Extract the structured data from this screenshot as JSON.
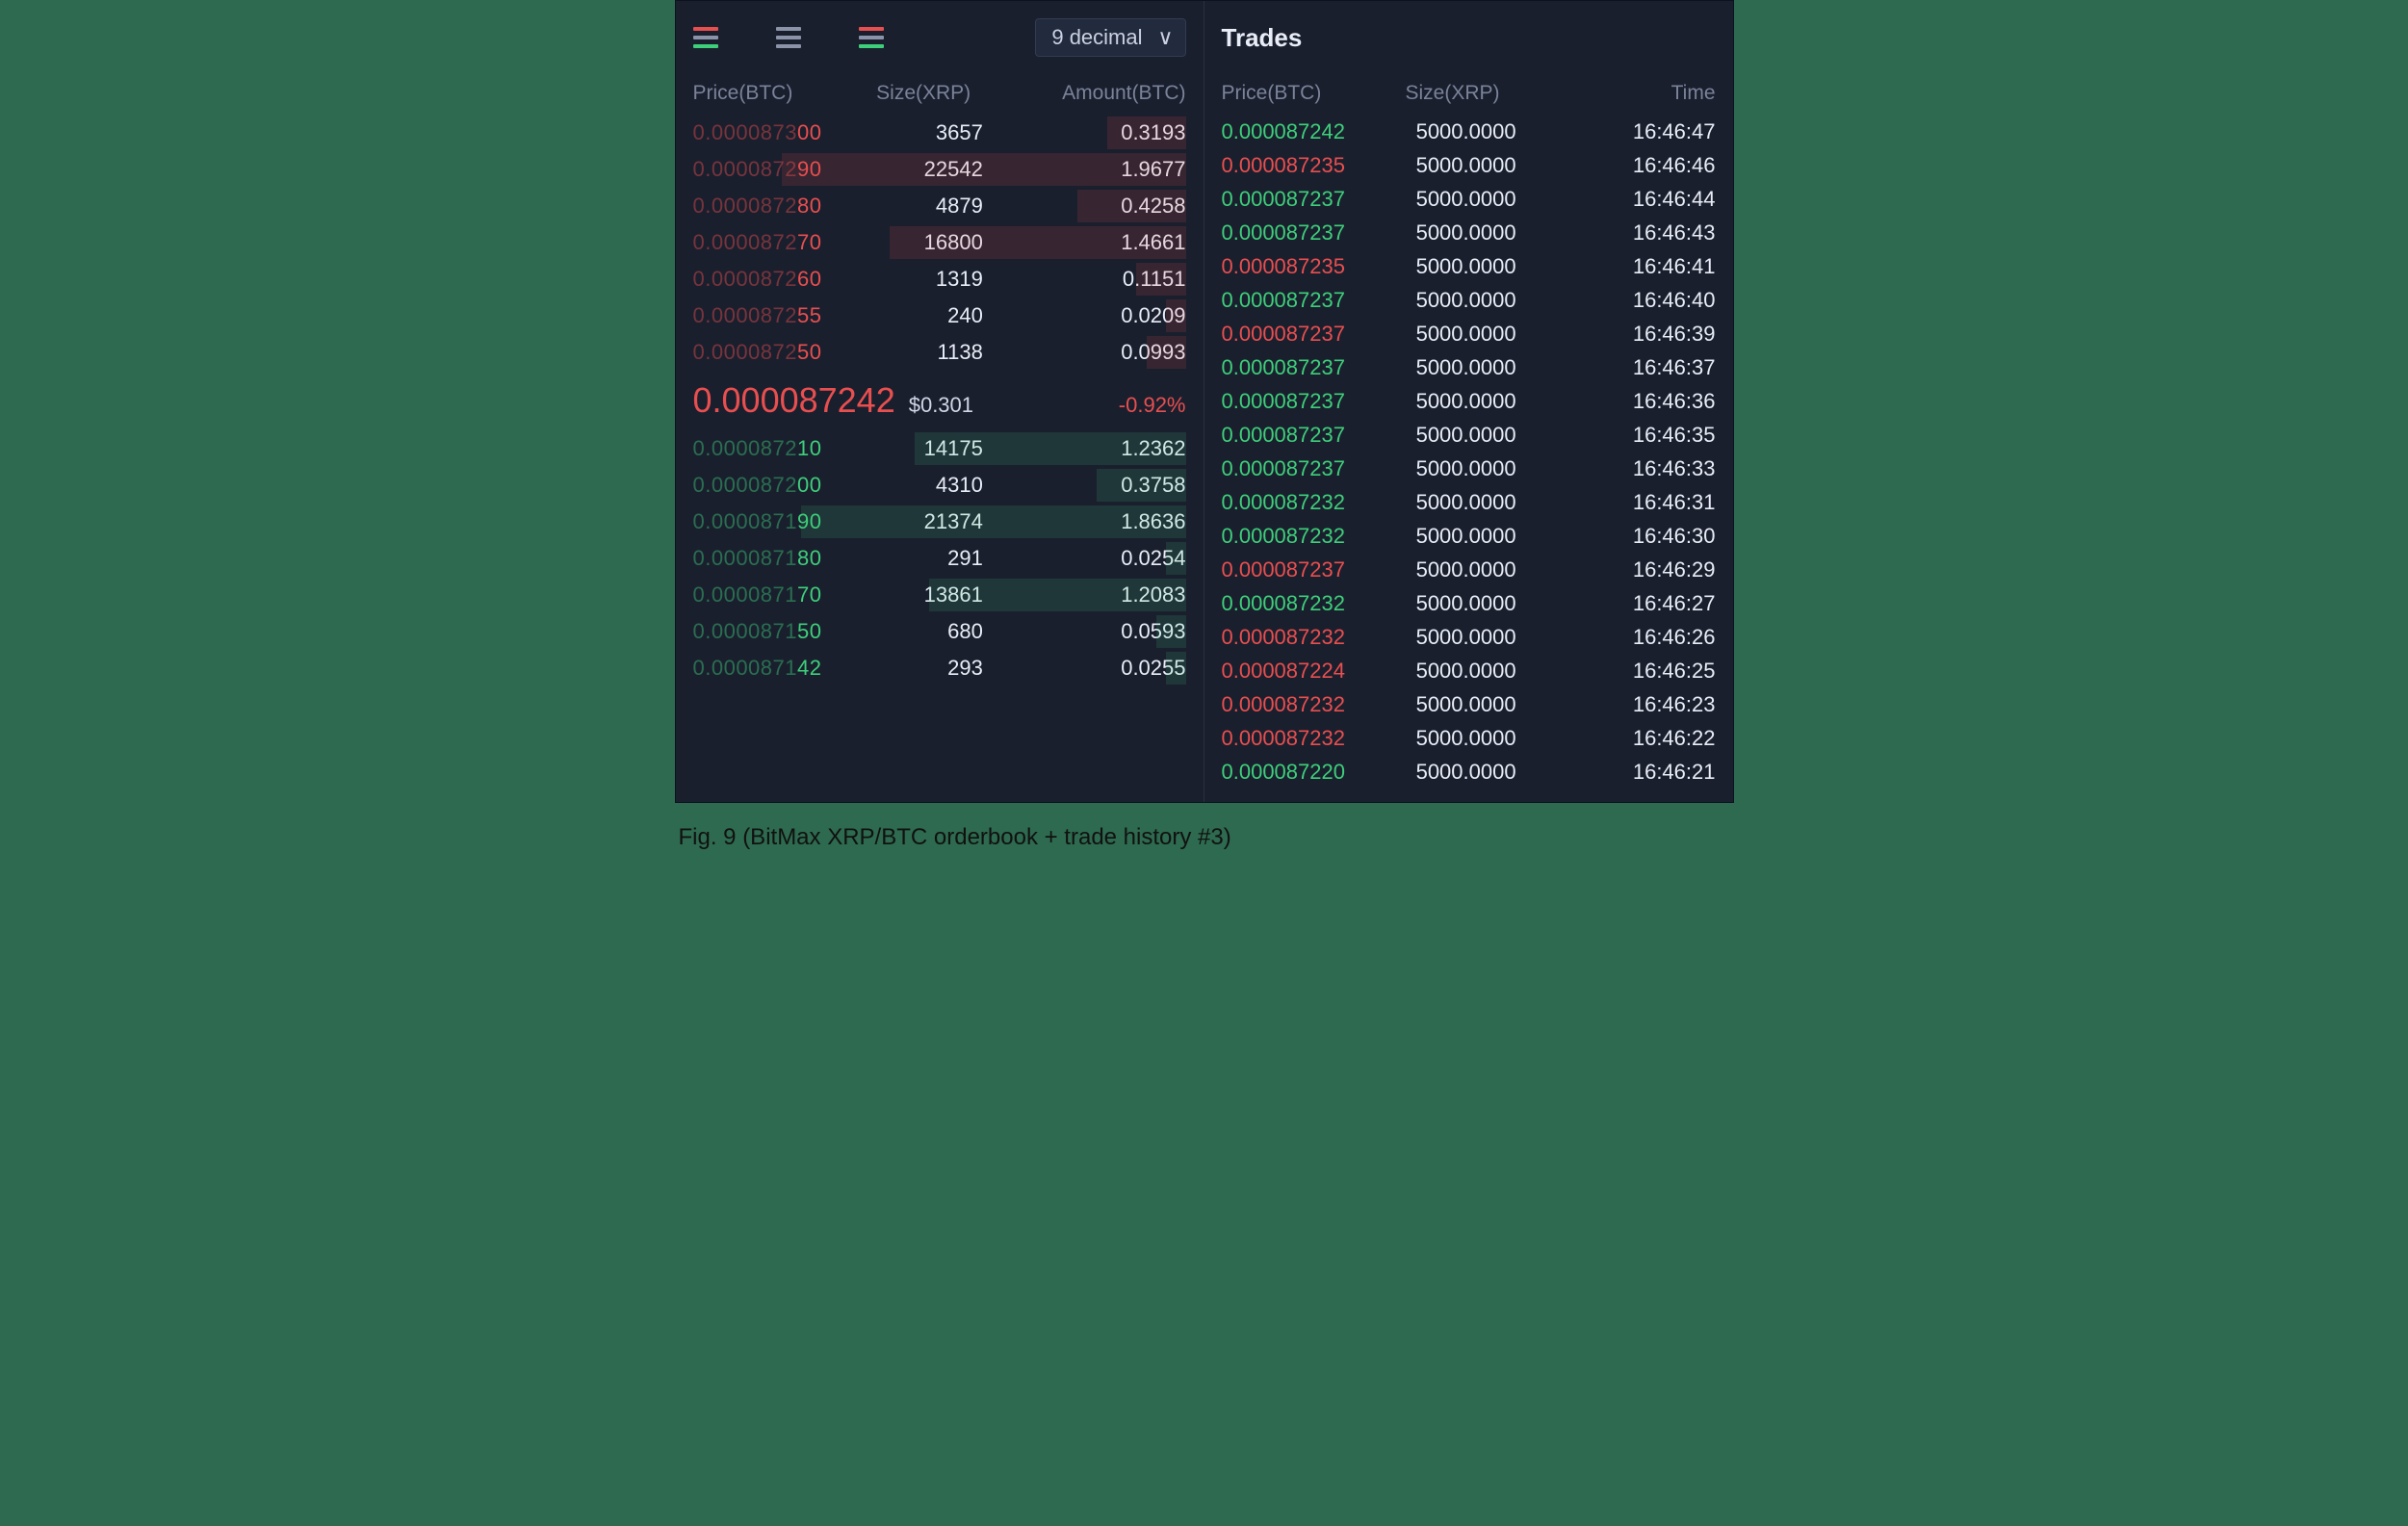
{
  "colors": {
    "bg_page": "#2d6a4f",
    "bg_panel": "#1a1f2e",
    "border": "#2a3042",
    "text_muted": "#7a8399",
    "text": "#e8edf7",
    "ask": "#e84f4f",
    "bid": "#3ecf7a",
    "neutral": "#8a93a8"
  },
  "orderbook": {
    "mode_icons": [
      {
        "name": "orderbook-mode-both",
        "top": "#e84f4f",
        "mid": "#8a93a8",
        "bot": "#3ecf7a"
      },
      {
        "name": "orderbook-mode-neutral",
        "top": "#8a93a8",
        "mid": "#8a93a8",
        "bot": "#8a93a8"
      },
      {
        "name": "orderbook-mode-bids",
        "top": "#e84f4f",
        "mid": "#8a93a8",
        "bot": "#3ecf7a"
      }
    ],
    "decimal_selector": {
      "label": "9 decimal"
    },
    "headers": {
      "price": "Price(BTC)",
      "size": "Size(XRP)",
      "amount": "Amount(BTC)"
    },
    "asks": [
      {
        "price_dim": "0.0000872",
        "price_hi": "55",
        "size": "240",
        "amount": "0.0209",
        "depth_pct": 4
      },
      {
        "price_dim": "0.0000872",
        "price_hi": "50",
        "size": "1138",
        "amount": "0.0993",
        "depth_pct": 8
      },
      {
        "price_dim": "0.0000872",
        "price_hi": "60",
        "size": "1319",
        "amount": "0.1151",
        "depth_pct": 10
      },
      {
        "price_dim": "0.0000873",
        "price_hi": "00",
        "size": "3657",
        "amount": "0.3193",
        "depth_pct": 16
      },
      {
        "price_dim": "0.0000872",
        "price_hi": "80",
        "size": "4879",
        "amount": "0.4258",
        "depth_pct": 22
      },
      {
        "price_dim": "0.0000872",
        "price_hi": "70",
        "size": "16800",
        "amount": "1.4661",
        "depth_pct": 60
      },
      {
        "price_dim": "0.0000872",
        "price_hi": "90",
        "size": "22542",
        "amount": "1.9677",
        "depth_pct": 82
      }
    ],
    "_ask_display_order": [
      {
        "price_dim": "0.0000873",
        "price_hi": "00",
        "size": "3657",
        "amount": "0.3193",
        "depth_pct": 16
      },
      {
        "price_dim": "0.0000872",
        "price_hi": "90",
        "size": "22542",
        "amount": "1.9677",
        "depth_pct": 82
      },
      {
        "price_dim": "0.0000872",
        "price_hi": "80",
        "size": "4879",
        "amount": "0.4258",
        "depth_pct": 22
      },
      {
        "price_dim": "0.0000872",
        "price_hi": "70",
        "size": "16800",
        "amount": "1.4661",
        "depth_pct": 60
      },
      {
        "price_dim": "0.0000872",
        "price_hi": "60",
        "size": "1319",
        "amount": "0.1151",
        "depth_pct": 10
      },
      {
        "price_dim": "0.0000872",
        "price_hi": "55",
        "size": "240",
        "amount": "0.0209",
        "depth_pct": 4
      },
      {
        "price_dim": "0.0000872",
        "price_hi": "50",
        "size": "1138",
        "amount": "0.0993",
        "depth_pct": 8
      }
    ],
    "mid": {
      "last": "0.000087242",
      "last_color": "#e84f4f",
      "fiat": "$0.301",
      "change": "-0.92%",
      "change_color": "#e84f4f"
    },
    "bids": [
      {
        "price_dim": "0.0000872",
        "price_hi": "10",
        "size": "14175",
        "amount": "1.2362",
        "depth_pct": 55
      },
      {
        "price_dim": "0.0000872",
        "price_hi": "00",
        "size": "4310",
        "amount": "0.3758",
        "depth_pct": 18
      },
      {
        "price_dim": "0.0000871",
        "price_hi": "90",
        "size": "21374",
        "amount": "1.8636",
        "depth_pct": 78
      },
      {
        "price_dim": "0.0000871",
        "price_hi": "80",
        "size": "291",
        "amount": "0.0254",
        "depth_pct": 4
      },
      {
        "price_dim": "0.0000871",
        "price_hi": "70",
        "size": "13861",
        "amount": "1.2083",
        "depth_pct": 52
      },
      {
        "price_dim": "0.0000871",
        "price_hi": "50",
        "size": "680",
        "amount": "0.0593",
        "depth_pct": 6
      },
      {
        "price_dim": "0.0000871",
        "price_hi": "42",
        "size": "293",
        "amount": "0.0255",
        "depth_pct": 4
      }
    ]
  },
  "trades": {
    "title": "Trades",
    "headers": {
      "price": "Price(BTC)",
      "size": "Size(XRP)",
      "time": "Time"
    },
    "rows": [
      {
        "price": "0.000087242",
        "side": "buy",
        "size": "5000.0000",
        "time": "16:46:47"
      },
      {
        "price": "0.000087235",
        "side": "sell",
        "size": "5000.0000",
        "time": "16:46:46"
      },
      {
        "price": "0.000087237",
        "side": "buy",
        "size": "5000.0000",
        "time": "16:46:44"
      },
      {
        "price": "0.000087237",
        "side": "buy",
        "size": "5000.0000",
        "time": "16:46:43"
      },
      {
        "price": "0.000087235",
        "side": "sell",
        "size": "5000.0000",
        "time": "16:46:41"
      },
      {
        "price": "0.000087237",
        "side": "buy",
        "size": "5000.0000",
        "time": "16:46:40"
      },
      {
        "price": "0.000087237",
        "side": "sell",
        "size": "5000.0000",
        "time": "16:46:39"
      },
      {
        "price": "0.000087237",
        "side": "buy",
        "size": "5000.0000",
        "time": "16:46:37"
      },
      {
        "price": "0.000087237",
        "side": "buy",
        "size": "5000.0000",
        "time": "16:46:36"
      },
      {
        "price": "0.000087237",
        "side": "buy",
        "size": "5000.0000",
        "time": "16:46:35"
      },
      {
        "price": "0.000087237",
        "side": "buy",
        "size": "5000.0000",
        "time": "16:46:33"
      },
      {
        "price": "0.000087232",
        "side": "buy",
        "size": "5000.0000",
        "time": "16:46:31"
      },
      {
        "price": "0.000087232",
        "side": "buy",
        "size": "5000.0000",
        "time": "16:46:30"
      },
      {
        "price": "0.000087237",
        "side": "sell",
        "size": "5000.0000",
        "time": "16:46:29"
      },
      {
        "price": "0.000087232",
        "side": "buy",
        "size": "5000.0000",
        "time": "16:46:27"
      },
      {
        "price": "0.000087232",
        "side": "sell",
        "size": "5000.0000",
        "time": "16:46:26"
      },
      {
        "price": "0.000087224",
        "side": "sell",
        "size": "5000.0000",
        "time": "16:46:25"
      },
      {
        "price": "0.000087232",
        "side": "sell",
        "size": "5000.0000",
        "time": "16:46:23"
      },
      {
        "price": "0.000087232",
        "side": "sell",
        "size": "5000.0000",
        "time": "16:46:22"
      },
      {
        "price": "0.000087220",
        "side": "buy",
        "size": "5000.0000",
        "time": "16:46:21"
      }
    ]
  },
  "caption": "Fig. 9 (BitMax XRP/BTC orderbook + trade history #3)"
}
